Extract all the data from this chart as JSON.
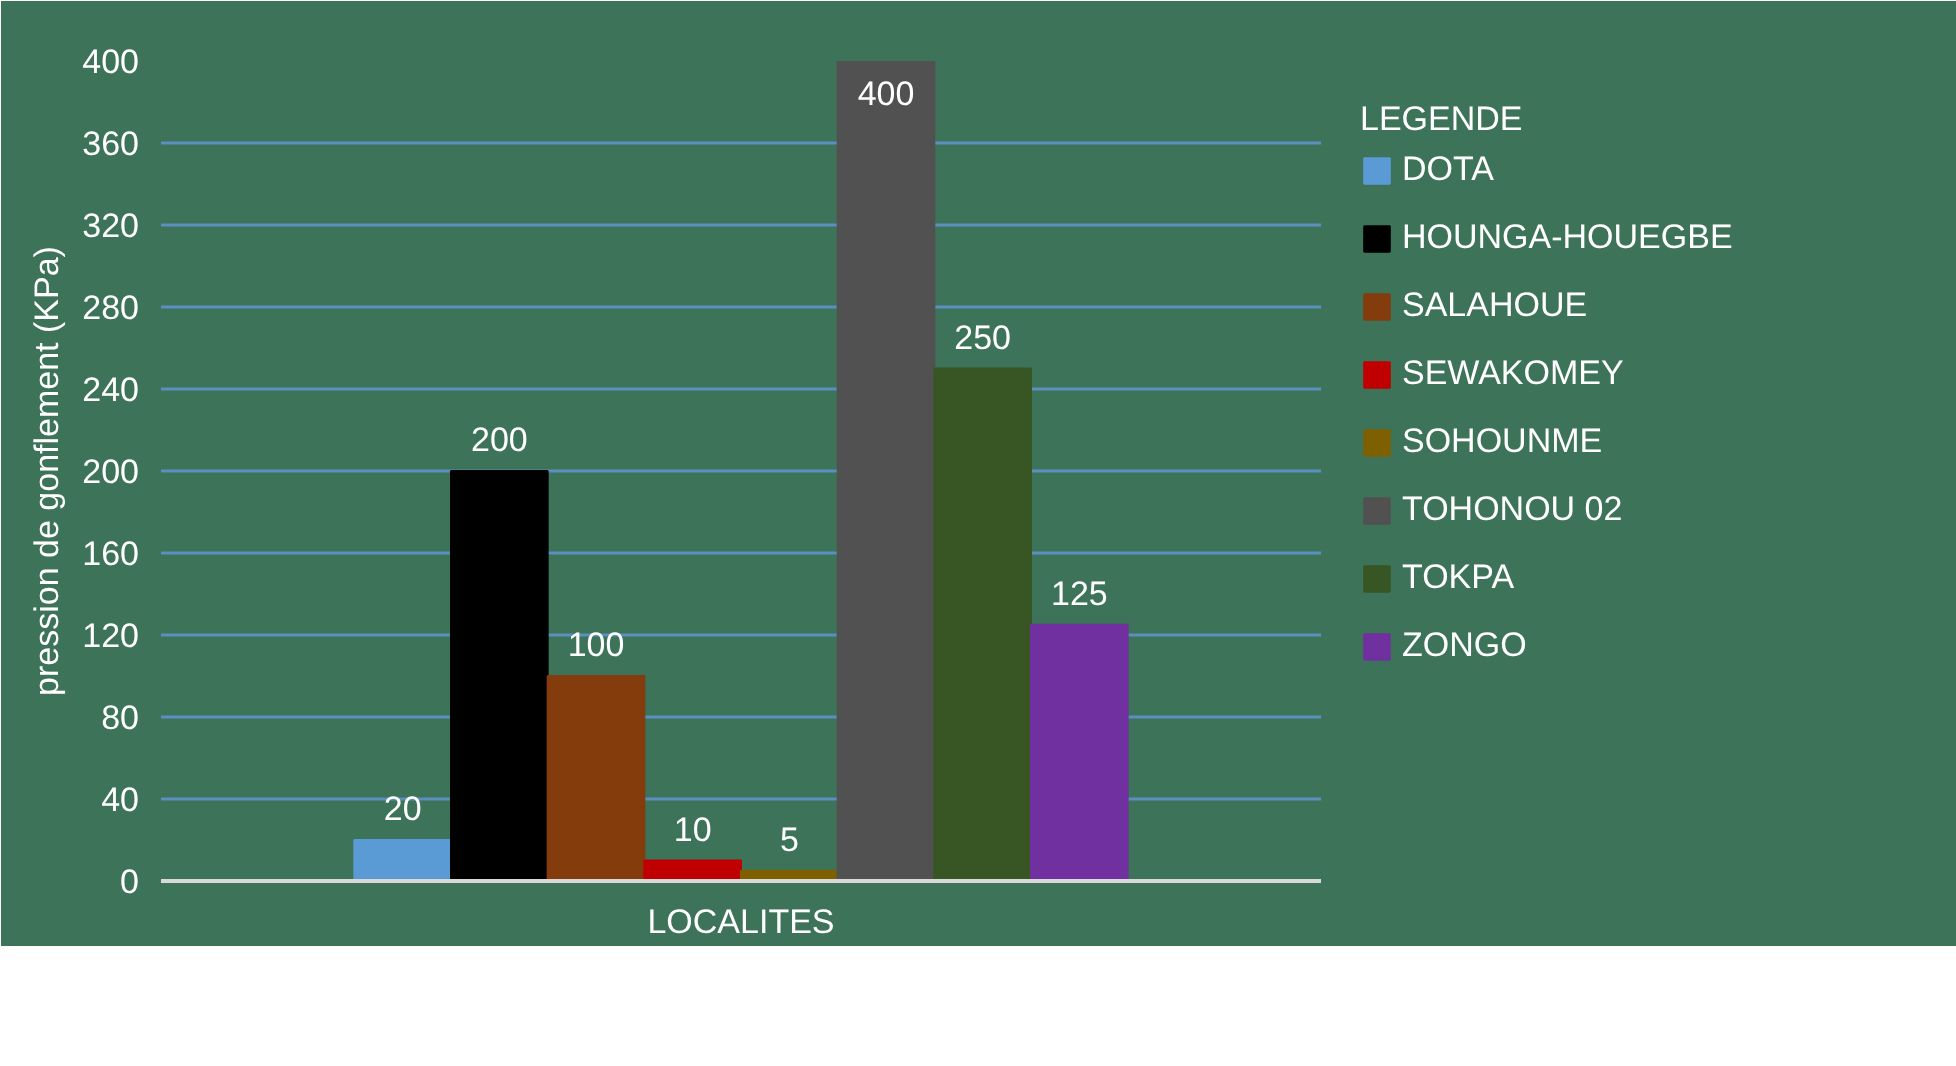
{
  "chart_data": {
    "type": "bar",
    "xlabel": "LOCALITES",
    "ylabel": "pression de gonflement (KPa)",
    "legend_title": "LEGENDE",
    "categories": [
      null
    ],
    "series": [
      {
        "name": "DOTA",
        "color": "#5b9bd5",
        "values": [
          20
        ]
      },
      {
        "name": "HOUNGA-HOUEGBE",
        "color": "#000000",
        "values": [
          200
        ]
      },
      {
        "name": "SALAHOUE",
        "color": "#843c0c",
        "values": [
          100
        ]
      },
      {
        "name": "SEWAKOMEY",
        "color": "#c00000",
        "values": [
          10
        ]
      },
      {
        "name": "SOHOUNME",
        "color": "#7f6000",
        "values": [
          5
        ]
      },
      {
        "name": "TOHONOU 02",
        "color": "#515151",
        "values": [
          400
        ]
      },
      {
        "name": "TOKPA",
        "color": "#375623",
        "values": [
          250
        ]
      },
      {
        "name": "ZONGO",
        "color": "#7030a0",
        "values": [
          125
        ]
      }
    ],
    "ylim": [
      0,
      400
    ],
    "yticks": [
      0,
      40,
      80,
      120,
      160,
      200,
      240,
      280,
      320,
      360,
      400
    ],
    "grid": "y",
    "legend": "right",
    "data_labels": true
  }
}
